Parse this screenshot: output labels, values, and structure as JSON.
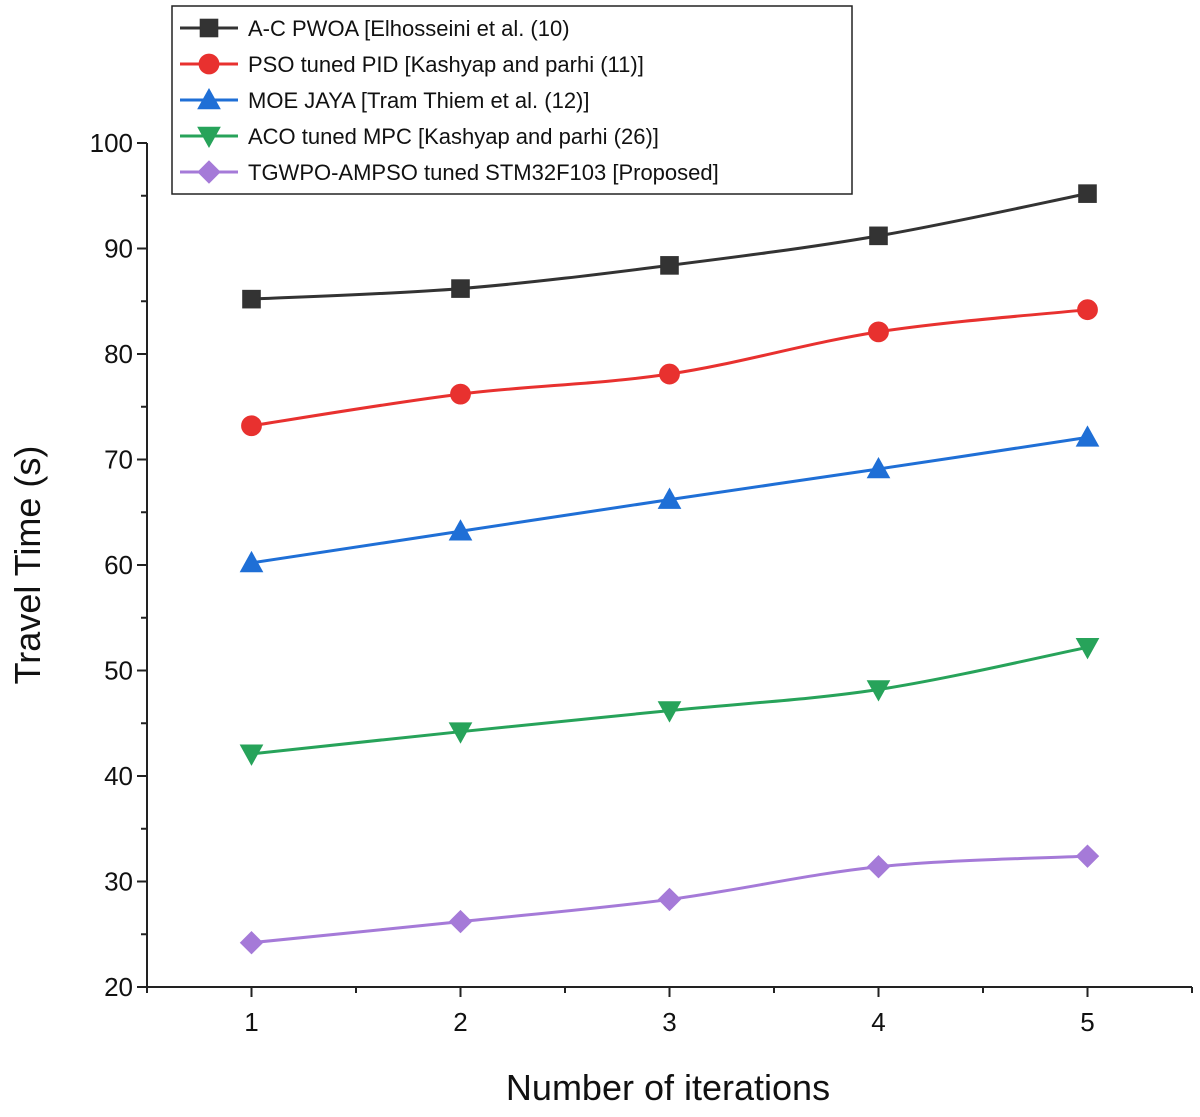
{
  "chart_data": {
    "type": "line",
    "title": "",
    "xlabel": "Number of iterations",
    "ylabel": "Travel Time (s)",
    "xlim": [
      0.5,
      5.5
    ],
    "ylim": [
      20,
      100
    ],
    "x": [
      1,
      2,
      3,
      4,
      5
    ],
    "x_ticks": [
      "1",
      "2",
      "3",
      "4",
      "5"
    ],
    "y_ticks": [
      "20",
      "30",
      "40",
      "50",
      "60",
      "70",
      "80",
      "90",
      "100"
    ],
    "legend_position": "top-left",
    "grid": false,
    "series": [
      {
        "name": "A-C PWOA [Elhosseini et al. (10)",
        "color": "#333333",
        "marker": "square",
        "values": [
          85.2,
          86.2,
          88.4,
          91.2,
          95.2
        ]
      },
      {
        "name": "PSO tuned PID [Kashyap and parhi (11)]",
        "color": "#e8312f",
        "marker": "circle",
        "values": [
          73.2,
          76.2,
          78.1,
          82.1,
          84.2
        ]
      },
      {
        "name": "MOE JAYA [Tram Thiem et al. (12)]",
        "color": "#1f6fd6",
        "marker": "triangle-up",
        "values": [
          60.2,
          63.2,
          66.2,
          69.1,
          72.1
        ]
      },
      {
        "name": "ACO tuned MPC [Kashyap and parhi (26)]",
        "color": "#27a35a",
        "marker": "triangle-down",
        "values": [
          42.1,
          44.2,
          46.2,
          48.2,
          52.2
        ]
      },
      {
        "name": "TGWPO-AMPSO tuned STM32F103 [Proposed]",
        "color": "#a57ad8",
        "marker": "diamond",
        "values": [
          24.2,
          26.2,
          28.3,
          31.4,
          32.4
        ]
      }
    ]
  }
}
